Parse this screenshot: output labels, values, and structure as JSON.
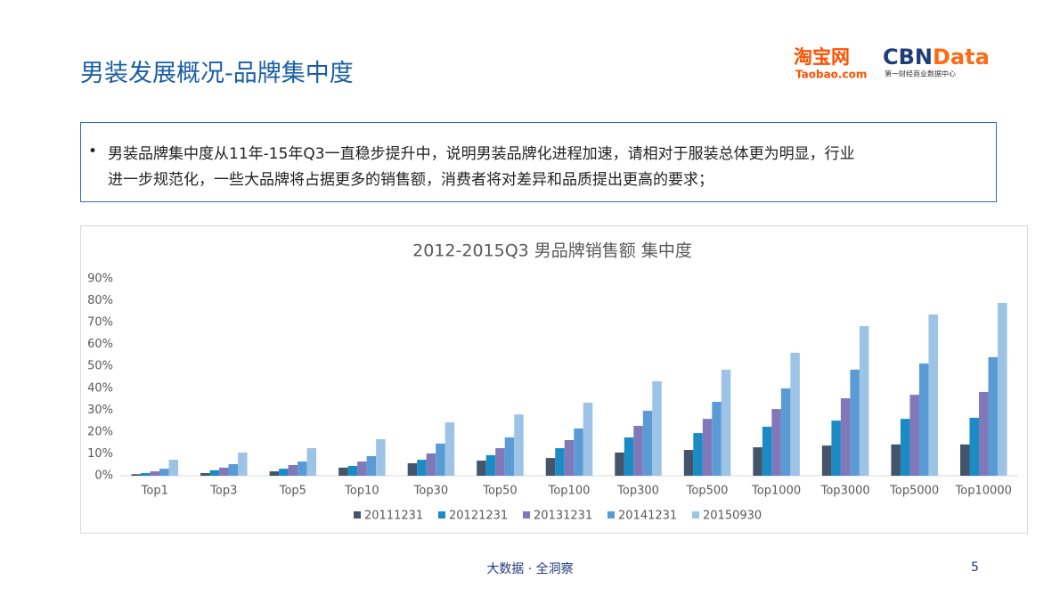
{
  "header": {
    "title": "男装发展概况-品牌集中度",
    "logo_taobao": "淘宝网",
    "logo_taobao_sub": "Taobao.com",
    "logo_cbn_part1": "CBN",
    "logo_cbn_part2": "Data",
    "logo_cbn_sub": "第一财经商业数据中心"
  },
  "bullet": {
    "lines": [
      "男装品牌集中度从11年-15年Q3一直稳步提升中，说明男装品牌化进程加速，请相对于服装总体更为明显，行业",
      "进一步规范化，一些大品牌将占据更多的销售额，消费者将对差异和品质提出更高的要求；"
    ]
  },
  "chart_data": {
    "type": "bar",
    "title": "2012-2015Q3 男品牌销售额 集中度",
    "categories": [
      "Top1",
      "Top3",
      "Top5",
      "Top10",
      "Top30",
      "Top50",
      "Top100",
      "Top300",
      "Top500",
      "Top1000",
      "Top3000",
      "Top5000",
      "Top10000"
    ],
    "series": [
      {
        "name": "20111231",
        "color": "#44546a",
        "values": [
          0.7,
          1.2,
          2,
          3.7,
          5.7,
          6.9,
          8.1,
          10.6,
          11.8,
          13,
          13.8,
          14.3,
          14.3
        ]
      },
      {
        "name": "20121231",
        "color": "#1a8bc4",
        "values": [
          1.2,
          2.5,
          3.2,
          4.5,
          7.3,
          9.4,
          12.6,
          17.5,
          19.5,
          22.4,
          25.2,
          26,
          26.5
        ]
      },
      {
        "name": "20131231",
        "color": "#8078b8",
        "values": [
          2,
          3.7,
          4.9,
          6.5,
          10.2,
          12.6,
          16.3,
          22.8,
          26,
          30.5,
          35.4,
          37,
          38.3
        ]
      },
      {
        "name": "20141231",
        "color": "#5b9bd5",
        "values": [
          3.2,
          5.3,
          6.5,
          9,
          14.7,
          17.5,
          21.6,
          29.7,
          33.8,
          39.9,
          48.5,
          51.3,
          54.2
        ]
      },
      {
        "name": "20150930",
        "color": "#9dc3e6",
        "values": [
          7.3,
          10.6,
          12.6,
          16.7,
          24.4,
          28,
          33.4,
          43.2,
          48.5,
          56.2,
          68.4,
          73.7,
          79
        ]
      }
    ],
    "ylim": [
      0,
      90
    ],
    "yticks": [
      {
        "value": 0,
        "label": "0%"
      },
      {
        "value": 10,
        "label": "10%"
      },
      {
        "value": 20,
        "label": "20%"
      },
      {
        "value": 30,
        "label": "30%"
      },
      {
        "value": 40,
        "label": "40%"
      },
      {
        "value": 50,
        "label": "50%"
      },
      {
        "value": 60,
        "label": "60%"
      },
      {
        "value": 70,
        "label": "70%"
      },
      {
        "value": 80,
        "label": "80%"
      },
      {
        "value": 90,
        "label": "90%"
      }
    ],
    "grid": false,
    "legend": "bottom"
  },
  "footer": {
    "slogan": "大数据 · 全洞察",
    "page": "5"
  }
}
